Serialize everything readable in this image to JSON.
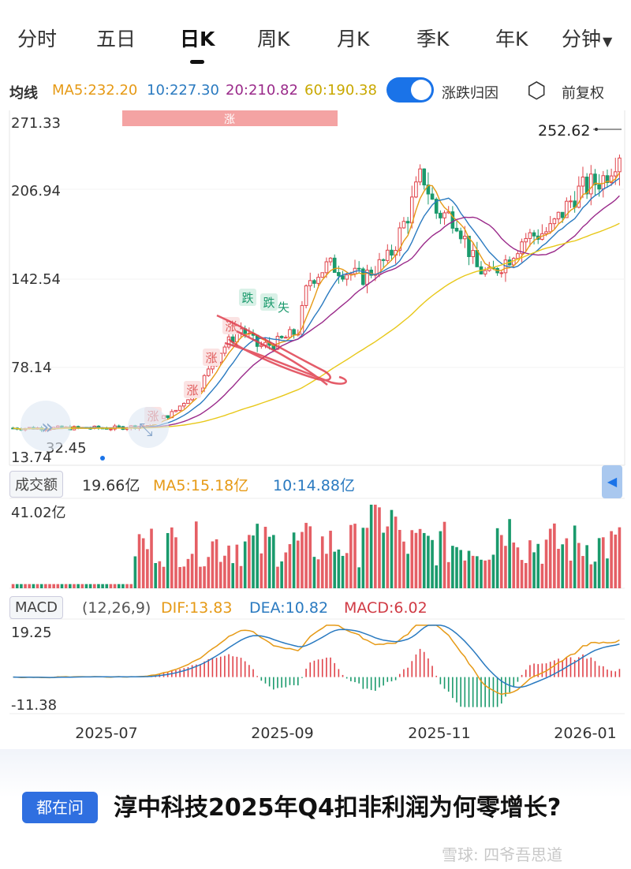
{
  "tabs": [
    {
      "label": "分时"
    },
    {
      "label": "五日"
    },
    {
      "label": "日K"
    },
    {
      "label": "周K"
    },
    {
      "label": "月K"
    },
    {
      "label": "季K"
    },
    {
      "label": "年K"
    },
    {
      "label": "分钟"
    }
  ],
  "ma_row": {
    "label": "均线",
    "ma5": "MA5:232.20",
    "ma10": "10:227.30",
    "ma20": "20:210.82",
    "ma60": "60:190.38",
    "toggle_label": "涨跌归因",
    "adjust_label": "前复权"
  },
  "price_chart": {
    "y_ticks": [
      "271.33",
      "206.94",
      "142.54",
      "78.14",
      "13.74"
    ],
    "last_price": "252.62",
    "low_label": "32.45",
    "banner": "涨",
    "annotations": {
      "rise": "涨",
      "fall": "跌",
      "loss": "失"
    }
  },
  "volume": {
    "label": "成交额",
    "current": "19.66亿",
    "ma5": "MA5:15.18亿",
    "ma10": "10:14.88亿",
    "max": "41.02亿"
  },
  "macd": {
    "label": "MACD",
    "params": "(12,26,9)",
    "dif": "DIF:13.83",
    "dea": "DEA:10.82",
    "macd_val": "MACD:6.02",
    "top": "19.25",
    "bottom": "-11.38"
  },
  "x_axis": [
    "2025-07",
    "2025-09",
    "2025-11",
    "2026-01"
  ],
  "question": {
    "badge": "都在问",
    "text": "淳中科技2025年Q4扣非利润为何零增长?"
  },
  "watermark": "雪球: 四爷吾思道",
  "colors": {
    "up": "#e0434a",
    "down": "#1a9a6c",
    "ma5": "#e69a16",
    "ma10": "#2a7ac0",
    "ma20": "#9a2a8a",
    "ma60": "#e8c81a",
    "accent": "#1a73e8"
  }
}
